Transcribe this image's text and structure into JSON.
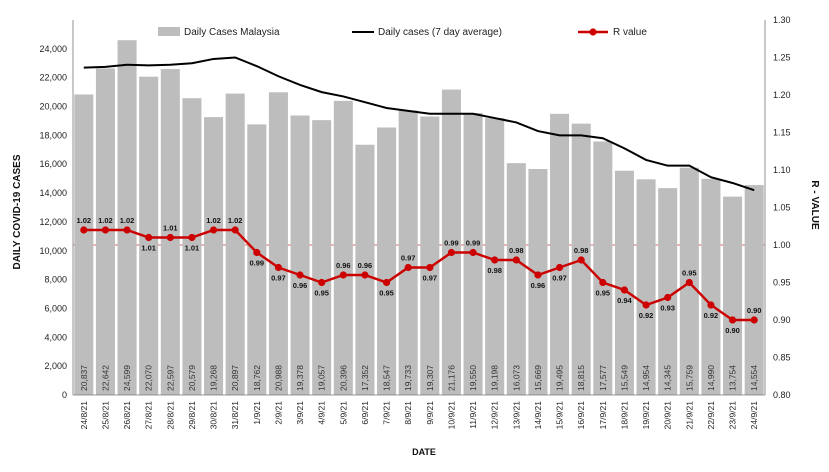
{
  "chart_data": {
    "type": "bar",
    "xlabel": "DATE",
    "ylabel": "DAILY COVID-19 CASES",
    "y2label": "R - VALUE",
    "ylim": [
      0,
      26000
    ],
    "y_ticks": [
      0,
      2000,
      4000,
      6000,
      8000,
      10000,
      12000,
      14000,
      16000,
      18000,
      20000,
      22000,
      24000
    ],
    "y2lim": [
      0.8,
      1.3
    ],
    "y2_ticks": [
      "0.80",
      "0.85",
      "0.90",
      "0.95",
      "1.00",
      "1.05",
      "1.10",
      "1.15",
      "1.20",
      "1.25",
      "1.30"
    ],
    "reference_line_r": 1.0,
    "grid": false,
    "legend": "top",
    "categories": [
      "24/8/21",
      "25/8/21",
      "26/8/21",
      "27/8/21",
      "28/8/21",
      "29/8/21",
      "30/8/21",
      "31/8/21",
      "1/9/21",
      "2/9/21",
      "3/9/21",
      "4/9/21",
      "5/9/21",
      "6/9/21",
      "7/9/21",
      "8/9/21",
      "9/9/21",
      "10/9/21",
      "11/9/21",
      "12/9/21",
      "13/9/21",
      "14/9/21",
      "15/9/21",
      "16/9/21",
      "17/9/21",
      "18/9/21",
      "19/9/21",
      "20/9/21",
      "21/9/21",
      "22/9/21",
      "23/9/21",
      "24/9/21"
    ],
    "series": [
      {
        "name": "Daily Cases Malaysia",
        "type": "bar",
        "color": "#bdbdbd",
        "values": [
          20837,
          22642,
          24599,
          22070,
          22597,
          20579,
          19268,
          20897,
          18762,
          20988,
          19378,
          19057,
          20396,
          17352,
          18547,
          19733,
          19307,
          21176,
          19550,
          19198,
          16073,
          15669,
          19495,
          18815,
          17577,
          15549,
          14954,
          14345,
          15759,
          14990,
          13754,
          14554
        ],
        "labels": [
          "20,837",
          "22,642",
          "24,599",
          "22,070",
          "22,597",
          "20,579",
          "19,268",
          "20,897",
          "18,762",
          "20,988",
          "19,378",
          "19,057",
          "20,396",
          "17,352",
          "18,547",
          "19,733",
          "19,307",
          "21,176",
          "19,550",
          "19,198",
          "16,073",
          "15,669",
          "19,495",
          "18,815",
          "17,577",
          "15,549",
          "14,954",
          "14,345",
          "15,759",
          "14,990",
          "13,754",
          "14,554"
        ]
      },
      {
        "name": "Daily cases (7 day average)",
        "type": "line",
        "color": "#000000",
        "values": [
          22700,
          22750,
          22900,
          22850,
          22900,
          23000,
          23300,
          23400,
          22800,
          22100,
          21500,
          21000,
          20700,
          20300,
          19900,
          19700,
          19500,
          19500,
          19500,
          19200,
          18900,
          18300,
          18000,
          18000,
          17800,
          17100,
          16300,
          15900,
          15900,
          15100,
          14700,
          14200
        ]
      },
      {
        "name": "R value",
        "type": "line",
        "axis": "right",
        "color": "#cc0000",
        "values": [
          1.02,
          1.02,
          1.02,
          1.01,
          1.01,
          1.01,
          1.02,
          1.02,
          0.99,
          0.97,
          0.96,
          0.95,
          0.96,
          0.96,
          0.95,
          0.97,
          0.97,
          0.99,
          0.99,
          0.98,
          0.98,
          0.96,
          0.97,
          0.98,
          0.95,
          0.94,
          0.92,
          0.93,
          0.95,
          0.92,
          0.9,
          0.9
        ],
        "labels": [
          "1.02",
          "1.02",
          "1.02",
          "1.01",
          "1.01",
          "1.01",
          "1.02",
          "1.02",
          "0.99",
          "0.97",
          "0.96",
          "0.95",
          "0.96",
          "0.96",
          "0.95",
          "0.97",
          "0.97",
          "0.99",
          "0.99",
          "0.98",
          "0.98",
          "0.96",
          "0.97",
          "0.98",
          "0.95",
          "0.94",
          "0.92",
          "0.93",
          "0.95",
          "0.92",
          "0.90",
          "0.90"
        ]
      }
    ]
  }
}
